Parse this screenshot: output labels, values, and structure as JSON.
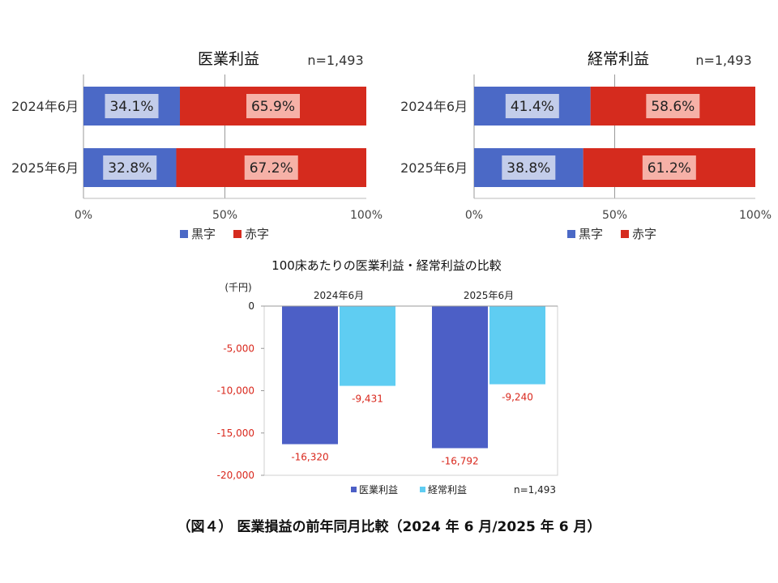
{
  "colors": {
    "black": "#4b69c6",
    "red": "#d52b1e",
    "label_box_black": "#c3cdea",
    "label_box_red": "#f6b1a7",
    "medical": "#4c5fc6",
    "ordinary": "#5fcdf2",
    "negative_tick": "#d9271c"
  },
  "chart_data": [
    {
      "type": "bar",
      "orientation": "horizontal-stacked-100",
      "title": "医業利益",
      "note": "n=1,493",
      "categories": [
        "2024年6月",
        "2025年6月"
      ],
      "series": [
        {
          "name": "黒字",
          "values": [
            34.1,
            32.8
          ],
          "labels": [
            "34.1%",
            "32.8%"
          ]
        },
        {
          "name": "赤字",
          "values": [
            65.9,
            67.2
          ],
          "labels": [
            "65.9%",
            "67.2%"
          ]
        }
      ],
      "xticks": [
        "0%",
        "50%",
        "100%"
      ],
      "xlim": [
        0,
        100
      ],
      "legend": [
        "黒字",
        "赤字"
      ],
      "legend_position": "bottom"
    },
    {
      "type": "bar",
      "orientation": "horizontal-stacked-100",
      "title": "経常利益",
      "note": "n=1,493",
      "categories": [
        "2024年6月",
        "2025年6月"
      ],
      "series": [
        {
          "name": "黒字",
          "values": [
            41.4,
            38.8
          ],
          "labels": [
            "41.4%",
            "38.8%"
          ]
        },
        {
          "name": "赤字",
          "values": [
            58.6,
            61.2
          ],
          "labels": [
            "58.6%",
            "61.2%"
          ]
        }
      ],
      "xticks": [
        "0%",
        "50%",
        "100%"
      ],
      "xlim": [
        0,
        100
      ],
      "legend": [
        "黒字",
        "赤字"
      ],
      "legend_position": "bottom"
    },
    {
      "type": "bar",
      "orientation": "vertical-grouped",
      "title": "100床あたりの医業利益・経常利益の比較",
      "unit": "(千円)",
      "note": "n=1,493",
      "categories": [
        "2024年6月",
        "2025年6月"
      ],
      "series": [
        {
          "name": "医業利益",
          "values": [
            -16320,
            -16792
          ],
          "labels": [
            "-16,320",
            "-16,792"
          ]
        },
        {
          "name": "経常利益",
          "values": [
            -9431,
            -9240
          ],
          "labels": [
            "-9,431",
            "-9,240"
          ]
        }
      ],
      "ylim": [
        -20000,
        0
      ],
      "yticks": [
        "0",
        "-5,000",
        "-10,000",
        "-15,000",
        "-20,000"
      ],
      "legend": [
        "医業利益",
        "経常利益"
      ],
      "legend_position": "bottom"
    }
  ],
  "caption": "（図４） 医業損益の前年同月比較（2024 年 6 月/2025 年 6 月）"
}
